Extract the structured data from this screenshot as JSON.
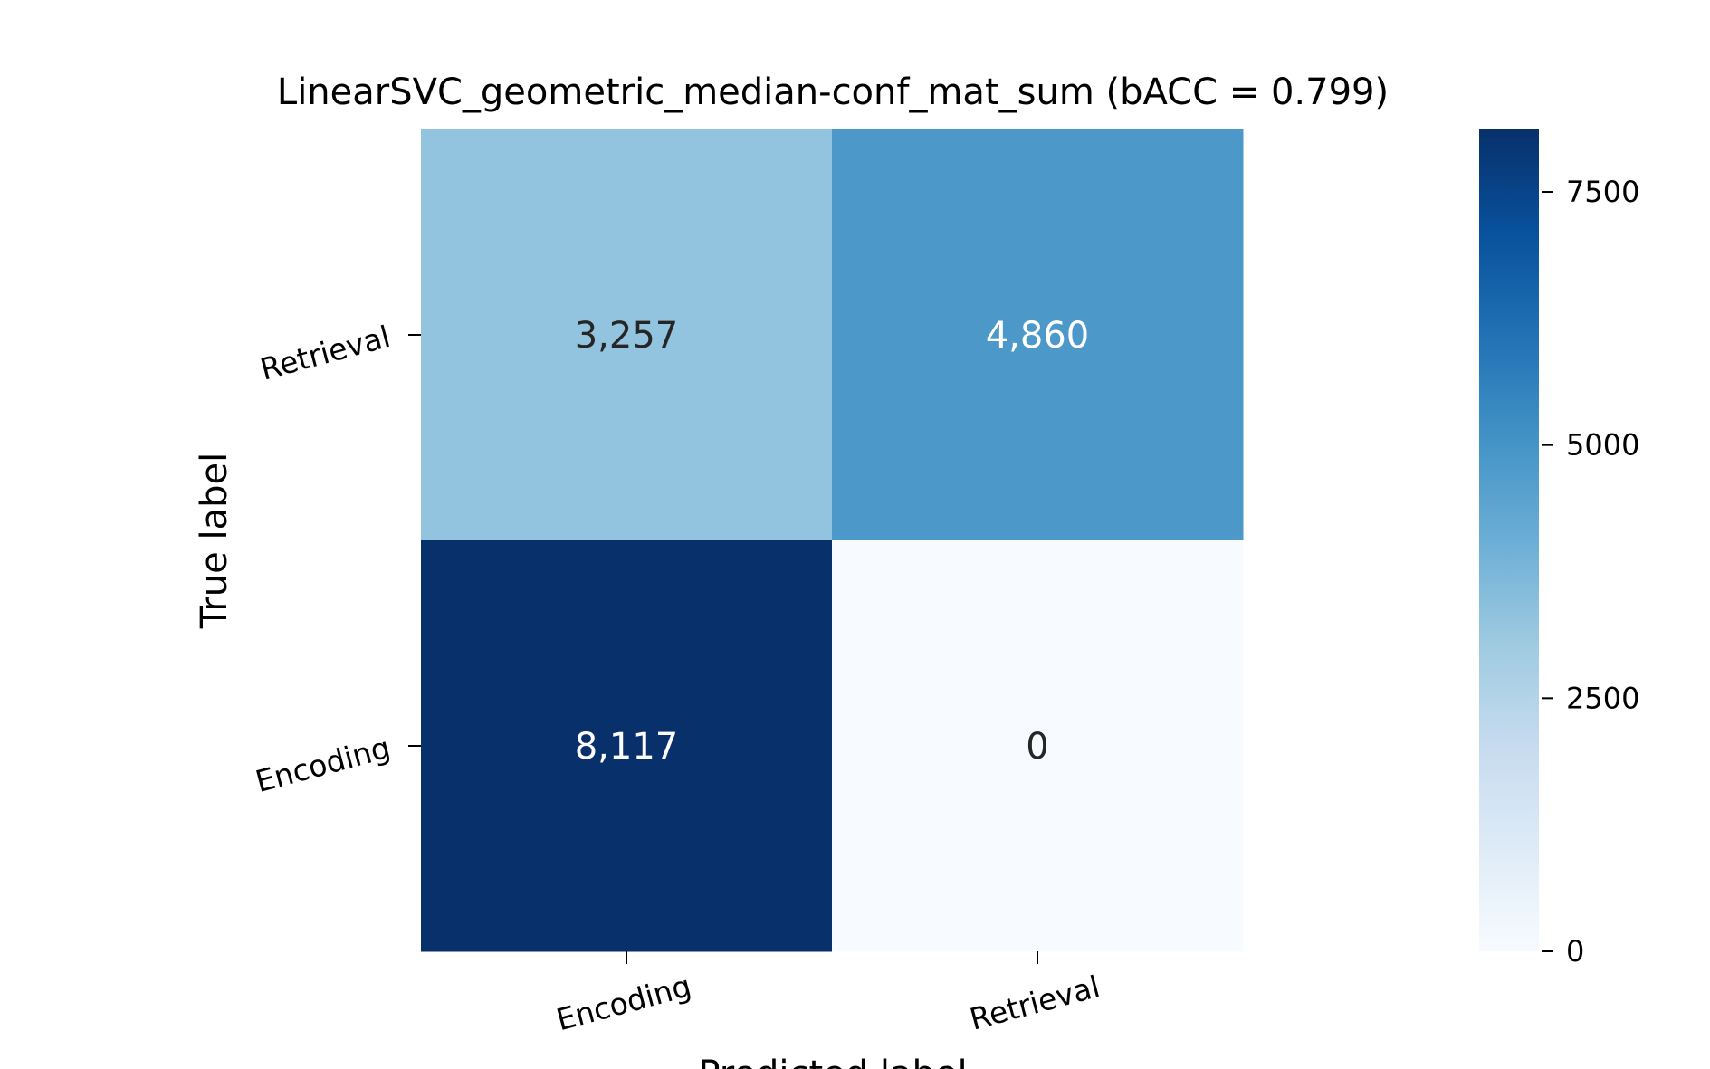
{
  "chart_data": {
    "type": "heatmap",
    "title": "LinearSVC_geometric_median-conf_mat_sum (bACC = 0.799)",
    "xlabel": "Predicted label",
    "ylabel": "True label",
    "x_categories": [
      "Encoding",
      "Retrieval"
    ],
    "y_categories": [
      "Retrieval",
      "Encoding"
    ],
    "values": [
      [
        3257,
        4860
      ],
      [
        8117,
        0
      ]
    ],
    "cell_labels": [
      [
        "3,257",
        "4,860"
      ],
      [
        "8,117",
        "0"
      ]
    ],
    "colormap": "Blues",
    "color_range": [
      0,
      8117
    ],
    "colorbar": {
      "ticks": [
        0,
        2500,
        5000,
        7500
      ],
      "tick_labels": [
        "0",
        "2500",
        "5000",
        "7500"
      ]
    },
    "grid": false,
    "legend": "colorbar-right"
  }
}
